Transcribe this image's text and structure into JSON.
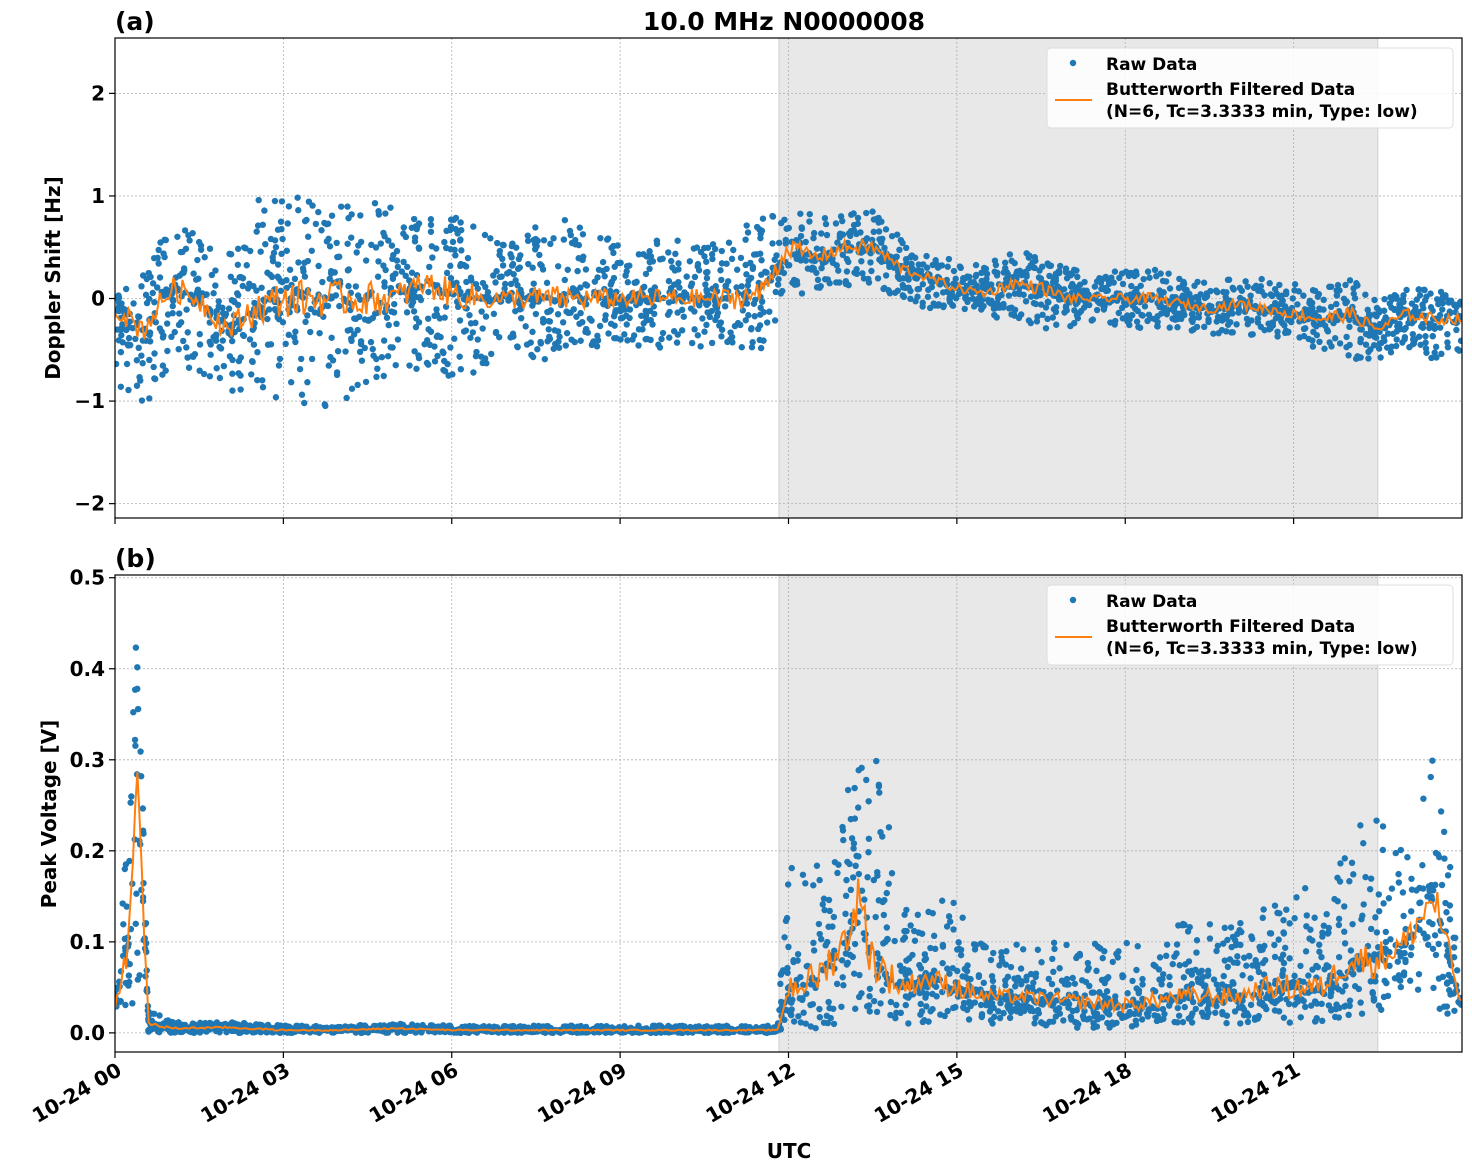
{
  "chart_data": [
    {
      "type": "scatter",
      "panel_label": "(a)",
      "title": "10.0 MHz N0000008",
      "xlabel": "",
      "ylabel": "Doppler Shift [Hz]",
      "xlim_hours": [
        0,
        24
      ],
      "ylim": [
        -2.14,
        2.54
      ],
      "yticks": [
        -2,
        -1,
        0,
        1,
        2
      ],
      "ytick_labels": [
        "−2",
        "−1",
        "0",
        "1",
        "2"
      ],
      "grid": true,
      "legend_placement": "upper-right",
      "shaded_interval_hours": [
        11.83,
        22.5
      ],
      "legend": [
        "Raw Data",
        "Butterworth Filtered Data",
        "(N=6, Tc=3.3333 min, Type: low)"
      ],
      "x_hours": [
        0,
        0.5,
        1,
        1.5,
        2,
        2.5,
        3,
        3.5,
        4,
        4.5,
        5,
        5.5,
        6,
        6.5,
        7,
        7.5,
        8,
        8.5,
        9,
        9.5,
        10,
        10.5,
        11,
        11.5,
        12,
        12.5,
        13,
        13.5,
        14,
        14.5,
        15,
        15.5,
        16,
        16.5,
        17,
        17.5,
        18,
        18.5,
        19,
        19.5,
        20,
        20.5,
        21,
        21.5,
        22,
        22.5,
        23,
        23.5,
        24
      ],
      "series": [
        {
          "name": "Butterworth Filtered Data",
          "values": [
            -0.1,
            -0.3,
            0.1,
            0.0,
            -0.3,
            -0.1,
            0.0,
            0.0,
            0.0,
            0.0,
            0.0,
            0.15,
            0.05,
            0.0,
            0.0,
            0.0,
            0.0,
            0.0,
            0.0,
            0.0,
            0.0,
            0.0,
            0.0,
            0.05,
            0.5,
            0.4,
            0.5,
            0.5,
            0.3,
            0.2,
            0.1,
            0.05,
            0.15,
            0.1,
            0.0,
            0.0,
            0.0,
            0.0,
            -0.05,
            -0.1,
            -0.05,
            -0.1,
            -0.15,
            -0.2,
            -0.15,
            -0.3,
            -0.15,
            -0.2,
            -0.2
          ]
        },
        {
          "name": "Raw Data",
          "low": [
            -0.8,
            -1.2,
            -0.6,
            -0.8,
            -0.9,
            -0.9,
            -1.0,
            -1.1,
            -1.0,
            -0.9,
            -0.8,
            -0.7,
            -0.8,
            -0.7,
            -0.5,
            -0.6,
            -0.6,
            -0.5,
            -0.4,
            -0.5,
            -0.5,
            -0.5,
            -0.5,
            -0.5,
            0.0,
            0.1,
            0.1,
            0.1,
            0.0,
            -0.1,
            -0.1,
            -0.2,
            -0.2,
            -0.3,
            -0.3,
            -0.2,
            -0.3,
            -0.3,
            -0.3,
            -0.35,
            -0.35,
            -0.4,
            -0.4,
            -0.5,
            -0.6,
            -0.6,
            -0.5,
            -0.6,
            -0.5
          ],
          "high": [
            0.1,
            0.3,
            0.7,
            0.7,
            0.4,
            1.0,
            1.0,
            1.0,
            0.9,
            1.0,
            0.9,
            0.8,
            0.8,
            0.7,
            0.5,
            0.8,
            0.8,
            0.7,
            0.5,
            0.6,
            0.6,
            0.5,
            0.7,
            0.8,
            1.0,
            0.9,
            0.8,
            0.9,
            0.6,
            0.4,
            0.4,
            0.3,
            0.5,
            0.4,
            0.3,
            0.2,
            0.3,
            0.3,
            0.2,
            0.15,
            0.2,
            0.2,
            0.15,
            0.2,
            0.2,
            0.0,
            0.1,
            0.1,
            0.0
          ]
        }
      ]
    },
    {
      "type": "scatter",
      "panel_label": "(b)",
      "title": "",
      "xlabel": "UTC",
      "ylabel": "Peak Voltage [V]",
      "xlim_hours": [
        0,
        24
      ],
      "ylim": [
        -0.021,
        0.503
      ],
      "yticks": [
        0.0,
        0.1,
        0.2,
        0.3,
        0.4,
        0.5
      ],
      "ytick_labels": [
        "0.0",
        "0.1",
        "0.2",
        "0.3",
        "0.4",
        "0.5"
      ],
      "xtick_labels": [
        "10-24 00",
        "10-24 03",
        "10-24 06",
        "10-24 09",
        "10-24 12",
        "10-24 15",
        "10-24 18",
        "10-24 21"
      ],
      "xtick_hours": [
        0,
        3,
        6,
        9,
        12,
        15,
        18,
        21
      ],
      "grid": true,
      "legend_placement": "upper-right",
      "shaded_interval_hours": [
        11.83,
        22.5
      ],
      "legend": [
        "Raw Data",
        "Butterworth Filtered Data",
        "(N=6, Tc=3.3333 min, Type: low)"
      ],
      "x_hours": [
        0,
        0.25,
        0.4,
        0.6,
        1,
        2,
        3,
        4,
        5,
        6,
        7,
        8,
        9,
        10,
        11,
        11.8,
        12,
        12.5,
        13,
        13.25,
        13.5,
        14,
        14.5,
        15,
        15.5,
        16,
        17,
        18,
        19,
        20,
        20.5,
        21,
        21.5,
        22,
        22.5,
        23,
        23.5,
        24
      ],
      "series": [
        {
          "name": "Butterworth Filtered Data",
          "values": [
            0.03,
            0.1,
            0.28,
            0.01,
            0.005,
            0.006,
            0.003,
            0.003,
            0.005,
            0.003,
            0.003,
            0.003,
            0.003,
            0.003,
            0.003,
            0.003,
            0.05,
            0.06,
            0.1,
            0.15,
            0.08,
            0.05,
            0.06,
            0.05,
            0.04,
            0.04,
            0.035,
            0.03,
            0.04,
            0.04,
            0.05,
            0.05,
            0.05,
            0.08,
            0.08,
            0.1,
            0.15,
            0.03
          ]
        },
        {
          "name": "Raw Data",
          "low": [
            0.01,
            0.02,
            0.05,
            0.0,
            0.0,
            0.0,
            0.0,
            0.0,
            0.0,
            0.0,
            0.0,
            0.0,
            0.0,
            0.0,
            0.0,
            0.0,
            0.01,
            0.005,
            0.01,
            0.02,
            0.02,
            0.01,
            0.01,
            0.01,
            0.01,
            0.01,
            0.005,
            0.005,
            0.01,
            0.01,
            0.01,
            0.01,
            0.01,
            0.02,
            0.02,
            0.03,
            0.03,
            0.01
          ],
          "high": [
            0.05,
            0.25,
            0.48,
            0.03,
            0.012,
            0.012,
            0.008,
            0.008,
            0.01,
            0.008,
            0.008,
            0.008,
            0.008,
            0.008,
            0.008,
            0.008,
            0.2,
            0.2,
            0.28,
            0.31,
            0.34,
            0.15,
            0.14,
            0.16,
            0.1,
            0.1,
            0.1,
            0.1,
            0.12,
            0.12,
            0.14,
            0.18,
            0.15,
            0.22,
            0.25,
            0.2,
            0.33,
            0.08
          ]
        }
      ]
    }
  ],
  "colors": {
    "raw": "#1f77b4",
    "filtered": "#ff7f0e",
    "shade": "#e8e8e8",
    "grid": "#b0b0b0"
  }
}
